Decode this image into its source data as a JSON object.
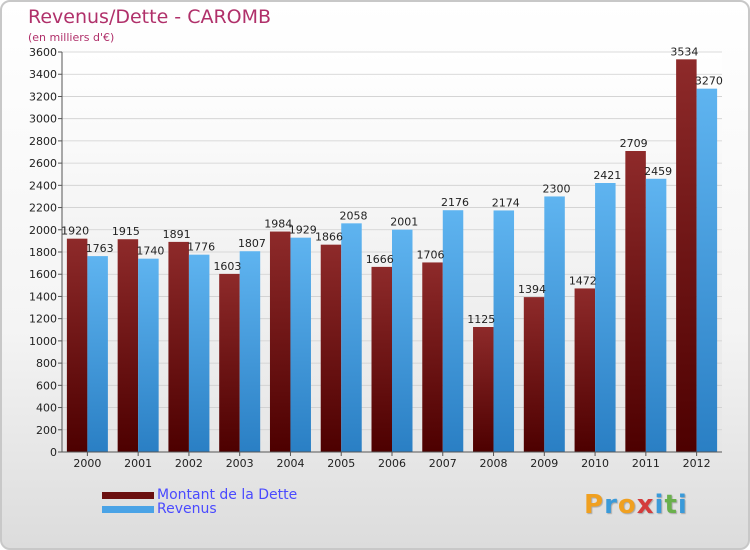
{
  "header": {
    "title": "Revenus/Dette - CAROMB",
    "subtitle": "(en milliers d'€)"
  },
  "chart_data": {
    "type": "bar",
    "title": "Revenus/Dette - CAROMB",
    "subtitle": "(en milliers d'€)",
    "categories": [
      "2000",
      "2001",
      "2002",
      "2003",
      "2004",
      "2005",
      "2006",
      "2007",
      "2008",
      "2009",
      "2010",
      "2011",
      "2012"
    ],
    "series": [
      {
        "name": "Montant de la Dette",
        "color": "#7a1a1a",
        "values": [
          1920,
          1915,
          1891,
          1603,
          1984,
          1866,
          1666,
          1706,
          1125,
          1394,
          1472,
          2709,
          3534
        ]
      },
      {
        "name": "Revenus",
        "color": "#4aa3e6",
        "values": [
          1763,
          1740,
          1776,
          1807,
          1929,
          2058,
          2001,
          2176,
          2174,
          2300,
          2421,
          2459,
          3270
        ]
      }
    ],
    "value_labels": [
      [
        "1920",
        "1915",
        "1891",
        "1603",
        "1984",
        "1866",
        "1666",
        "1706",
        "1125",
        "1394",
        "1472",
        "2709",
        "3534"
      ],
      [
        "1763",
        "1740",
        "1776",
        "1807",
        "1929",
        "2058",
        "2001",
        "2176",
        "2174",
        "2300",
        "2421",
        "2459",
        "3270"
      ]
    ],
    "ylim": [
      0,
      3600
    ],
    "yticks": [
      0,
      200,
      400,
      600,
      800,
      1000,
      1200,
      1400,
      1600,
      1800,
      2000,
      2200,
      2400,
      2600,
      2800,
      3000,
      3200,
      3400,
      3600
    ],
    "grid": true,
    "legend_position": "bottom-left"
  },
  "legend": {
    "items": [
      {
        "label": "Montant de la Dette",
        "color": "#6a0f0f"
      },
      {
        "label": "Revenus",
        "color": "#4aa3e6"
      }
    ]
  },
  "brand": {
    "letters": [
      {
        "ch": "P",
        "color": "#f0a020"
      },
      {
        "ch": "r",
        "color": "#3a9ad9"
      },
      {
        "ch": "o",
        "color": "#f0a020"
      },
      {
        "ch": "x",
        "color": "#d43c3c"
      },
      {
        "ch": "i",
        "color": "#3a9ad9"
      },
      {
        "ch": "t",
        "color": "#6ab04c"
      },
      {
        "ch": "i",
        "color": "#3a9ad9"
      }
    ]
  }
}
